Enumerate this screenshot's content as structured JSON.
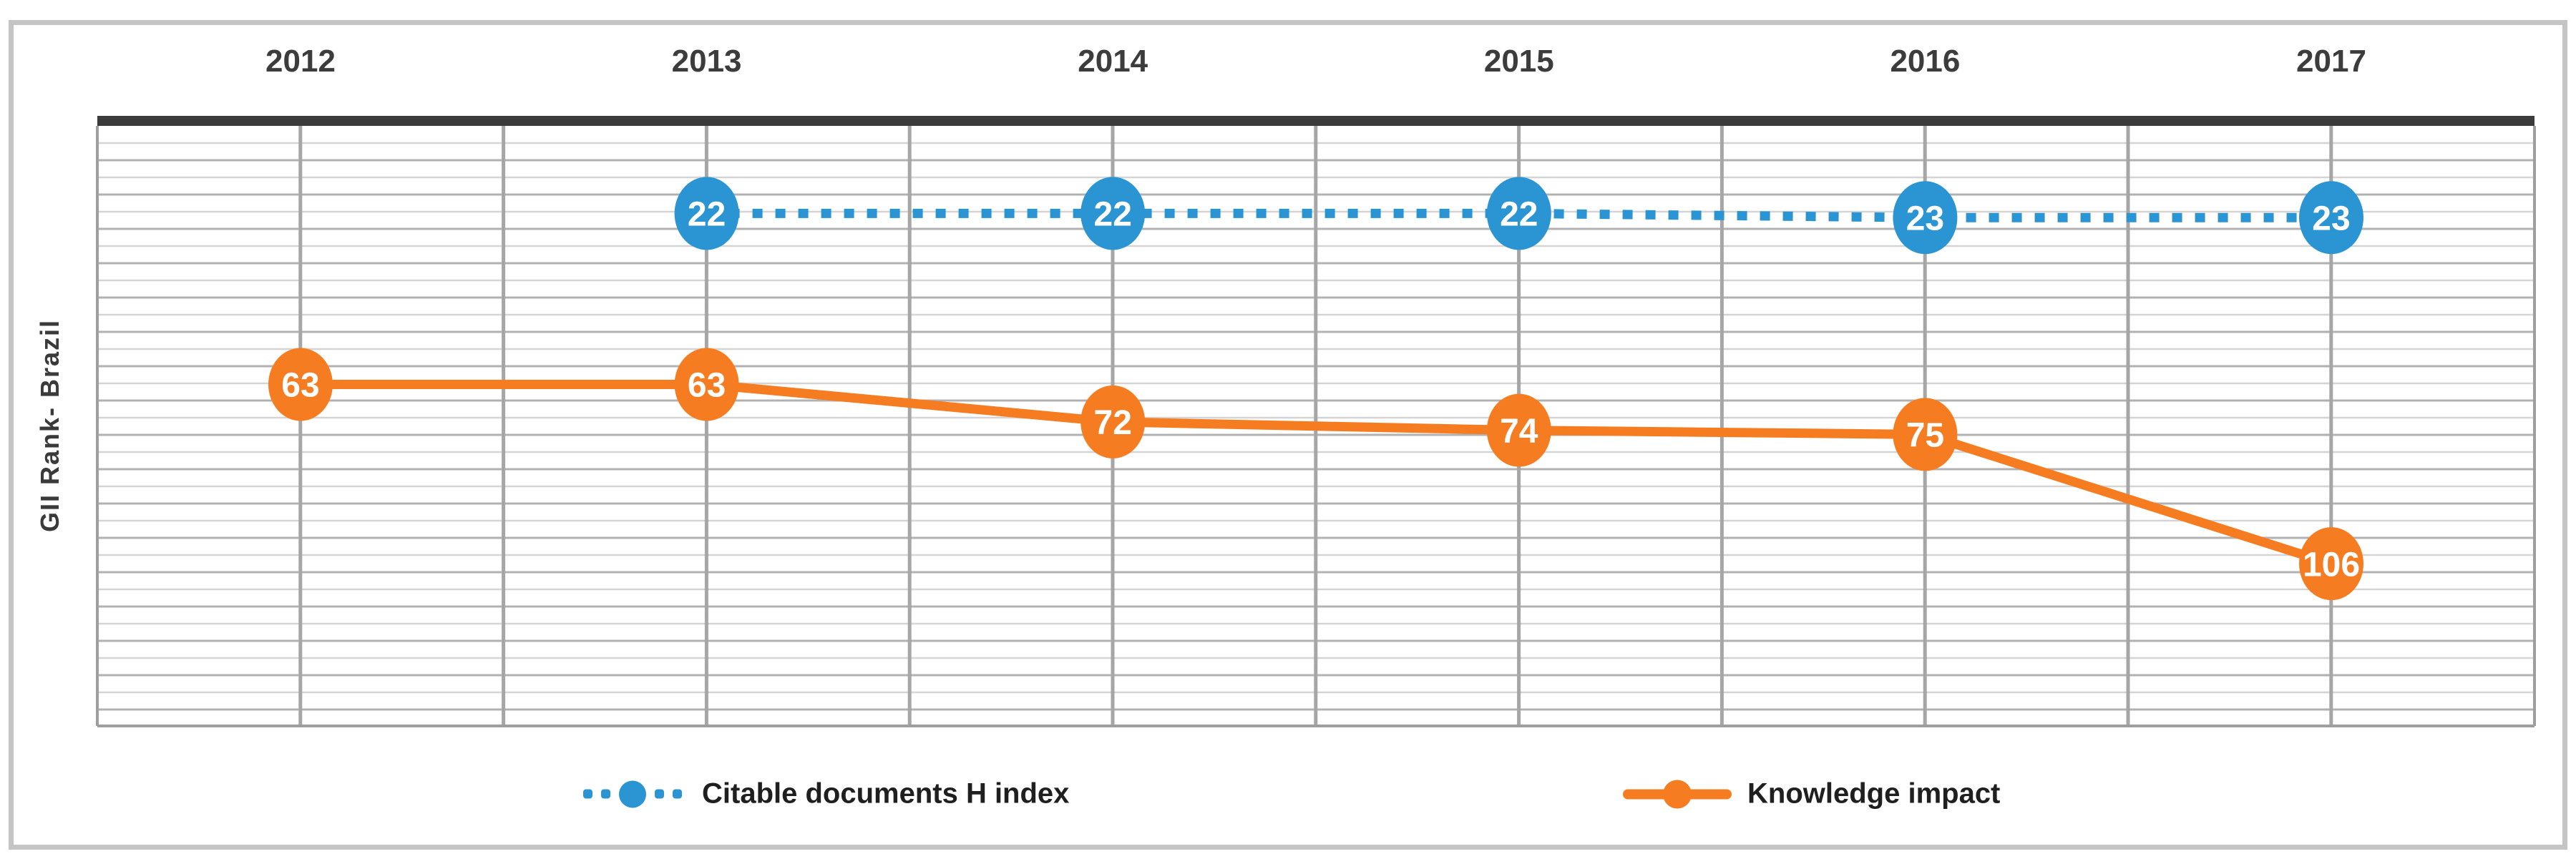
{
  "chart_data": {
    "type": "line",
    "title": "",
    "categories": [
      "2012",
      "2013",
      "2014",
      "2015",
      "2016",
      "2017"
    ],
    "series": [
      {
        "name": "Citable documents H index",
        "color": "#2B95D3",
        "line_style": "dotted",
        "marker": "circle",
        "values": [
          null,
          22,
          22,
          22,
          23,
          23
        ]
      },
      {
        "name": "Knowledge impact",
        "color": "#F57C20",
        "line_style": "solid",
        "marker": "circle",
        "values": [
          63,
          63,
          72,
          74,
          75,
          106
        ]
      }
    ],
    "xlabel": "",
    "ylabel": "GII Rank- Brazil",
    "x_axis_position": "top",
    "y_axis": {
      "inverted": true,
      "min": 0,
      "max": 145,
      "tick_labels_visible": false
    },
    "grid": {
      "horizontal": true,
      "vertical": true,
      "vertical_lines_at": "categories-and-midpoints"
    },
    "data_labels": "on-point",
    "legend_position": "bottom"
  },
  "colors": {
    "blue_series": "#2B95D3",
    "orange_series": "#F57C20",
    "top_axis_band": "#3B3B3B",
    "year_label_text": "#3C3C3C",
    "legend_text": "#1F1F1F",
    "axis_title_text": "#3A3A3A",
    "gridline_light": "#D4D4D4",
    "gridline_dark": "#B2B2B2",
    "vertical_gridline": "#A6A6A6",
    "plot_border": "#9E9E9E",
    "outer_frame_border": "#C5C5C5",
    "data_label_text": "#FFFFFF"
  }
}
